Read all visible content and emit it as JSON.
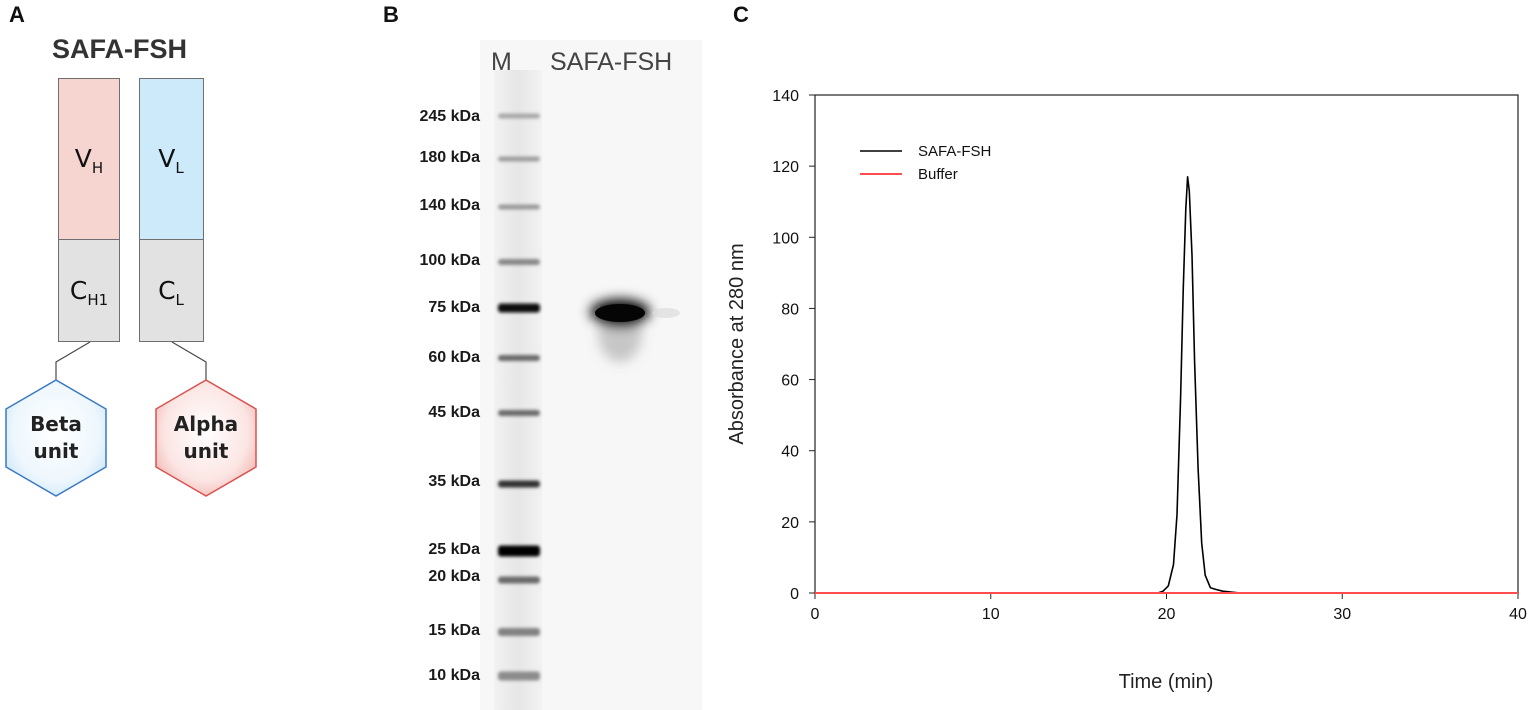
{
  "panel_a": {
    "letter": "A",
    "title": "SAFA-FSH",
    "heavy_variable": {
      "main": "V",
      "sub": "H"
    },
    "light_variable": {
      "main": "V",
      "sub": "L"
    },
    "heavy_constant": {
      "main": "C",
      "sub": "H1"
    },
    "light_constant": {
      "main": "C",
      "sub": "L"
    },
    "beta_unit": {
      "line1": "Beta",
      "line2": "unit"
    },
    "alpha_unit": {
      "line1": "Alpha",
      "line2": "unit"
    },
    "colors": {
      "heavy": "#f6d4d0",
      "light": "#cdeafb",
      "constant": "#e2e2e2",
      "beta_stroke": "#3a78c2",
      "alpha_stroke": "#d9534f"
    }
  },
  "panel_b": {
    "letter": "B",
    "lane_marker": "M",
    "lane_sample": "SAFA-FSH",
    "markers": [
      "245 kDa",
      "180 kDa",
      "140 kDa",
      "100 kDa",
      "75 kDa",
      "60 kDa",
      "45 kDa",
      "35 kDa",
      "25 kDa",
      "20 kDa",
      "15 kDa",
      "10 kDa"
    ]
  },
  "panel_c": {
    "letter": "C"
  },
  "chart_data": {
    "type": "line",
    "xlabel": "Time (min)",
    "ylabel": "Absorbance at 280 nm",
    "xlim": [
      0,
      40
    ],
    "ylim": [
      0,
      140
    ],
    "xticks": [
      0,
      10,
      20,
      30,
      40
    ],
    "yticks": [
      0,
      20,
      40,
      60,
      80,
      100,
      120,
      140
    ],
    "legend_position": "top-left",
    "series": [
      {
        "name": "SAFA-FSH",
        "color": "#000000",
        "x": [
          0,
          19.5,
          19.8,
          20.1,
          20.4,
          20.6,
          20.8,
          20.95,
          21.1,
          21.2,
          21.3,
          21.45,
          21.6,
          21.8,
          22.0,
          22.2,
          22.5,
          22.8,
          23.2,
          24.2,
          40
        ],
        "y": [
          0,
          0,
          0.5,
          2,
          8,
          22,
          55,
          85,
          108,
          117,
          113,
          95,
          65,
          35,
          14,
          5,
          1.5,
          1,
          0.5,
          0,
          0
        ]
      },
      {
        "name": "Buffer",
        "color": "#ff4d4d",
        "x": [
          0,
          40
        ],
        "y": [
          0,
          0
        ]
      }
    ]
  }
}
